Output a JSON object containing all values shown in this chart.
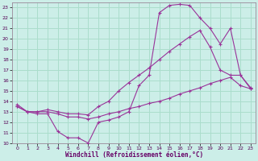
{
  "title": "",
  "xlabel": "Windchill (Refroidissement éolien,°C)",
  "bg_color": "#cceee8",
  "grid_color": "#aaddcc",
  "line_color": "#993399",
  "xlim": [
    -0.5,
    23.5
  ],
  "ylim": [
    10,
    23.5
  ],
  "xticks": [
    0,
    1,
    2,
    3,
    4,
    5,
    6,
    7,
    8,
    9,
    10,
    11,
    12,
    13,
    14,
    15,
    16,
    17,
    18,
    19,
    20,
    21,
    22,
    23
  ],
  "yticks": [
    10,
    11,
    12,
    13,
    14,
    15,
    16,
    17,
    18,
    19,
    20,
    21,
    22,
    23
  ],
  "line1_x": [
    0,
    1,
    2,
    3,
    4,
    5,
    6,
    7,
    8,
    9,
    10,
    11,
    12,
    13,
    14,
    15,
    16,
    17,
    18,
    19,
    20,
    21,
    22,
    23
  ],
  "line1_y": [
    13.7,
    13.0,
    12.8,
    12.8,
    11.1,
    10.5,
    10.5,
    10.0,
    12.0,
    12.2,
    12.5,
    13.0,
    15.5,
    16.5,
    22.5,
    23.2,
    23.3,
    23.2,
    22.0,
    21.0,
    19.5,
    21.0,
    16.5,
    15.2
  ],
  "line2_x": [
    0,
    1,
    2,
    3,
    4,
    5,
    6,
    7,
    8,
    9,
    10,
    11,
    12,
    13,
    14,
    15,
    16,
    17,
    18,
    19,
    20,
    21,
    22,
    23
  ],
  "line2_y": [
    13.5,
    13.0,
    13.0,
    13.2,
    13.0,
    12.8,
    12.8,
    12.7,
    13.5,
    14.0,
    15.0,
    15.8,
    16.5,
    17.2,
    18.0,
    18.8,
    19.5,
    20.2,
    20.8,
    19.2,
    17.0,
    16.5,
    16.5,
    15.3
  ],
  "line3_x": [
    0,
    1,
    2,
    3,
    4,
    5,
    6,
    7,
    8,
    9,
    10,
    11,
    12,
    13,
    14,
    15,
    16,
    17,
    18,
    19,
    20,
    21,
    22,
    23
  ],
  "line3_y": [
    13.5,
    13.0,
    13.0,
    13.0,
    12.8,
    12.5,
    12.5,
    12.3,
    12.5,
    12.8,
    13.0,
    13.3,
    13.5,
    13.8,
    14.0,
    14.3,
    14.7,
    15.0,
    15.3,
    15.7,
    16.0,
    16.3,
    15.5,
    15.2
  ]
}
